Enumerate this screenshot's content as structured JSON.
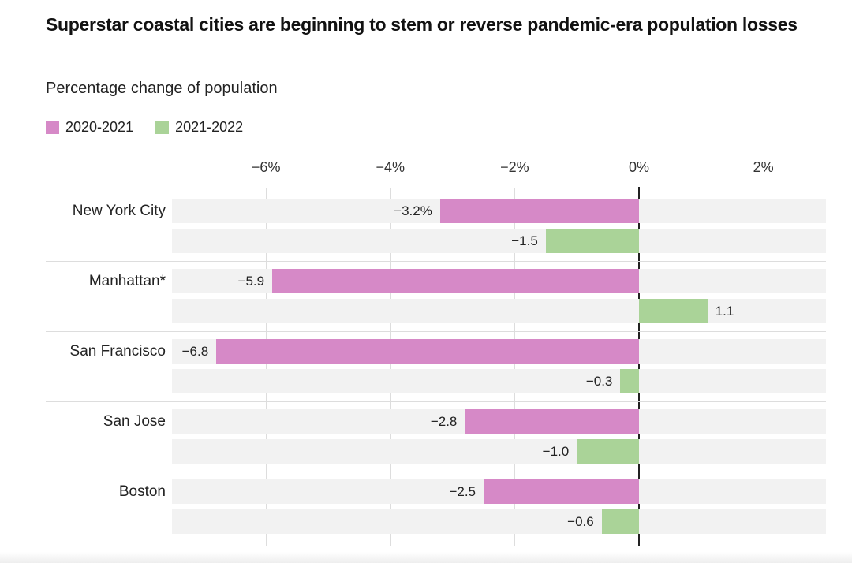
{
  "header": {
    "title": "Superstar coastal cities are beginning to stem or reverse pandemic-era population losses",
    "subtitle": "Percentage change of population"
  },
  "legend": [
    {
      "name": "2020-2021",
      "color": "#d689c7"
    },
    {
      "name": "2021-2022",
      "color": "#aad398"
    }
  ],
  "chart_data": {
    "type": "bar",
    "orientation": "horizontal",
    "title": "Superstar coastal cities are beginning to stem or reverse pandemic-era population losses",
    "subtitle": "Percentage change of population",
    "unit": "%",
    "categories": [
      "New York City",
      "Manhattan*",
      "San Francisco",
      "San Jose",
      "Boston"
    ],
    "series": [
      {
        "name": "2020-2021",
        "color": "#d689c7",
        "values": [
          -3.2,
          -5.9,
          -6.8,
          -2.8,
          -2.5
        ],
        "labels": [
          "−3.2%",
          "−5.9",
          "−6.8",
          "−2.8",
          "−2.5"
        ]
      },
      {
        "name": "2021-2022",
        "color": "#aad398",
        "values": [
          -1.5,
          1.1,
          -0.3,
          -1.0,
          -0.6
        ],
        "labels": [
          "−1.5",
          "1.1",
          "−0.3",
          "−1.0",
          "−0.6"
        ]
      }
    ],
    "axis": {
      "min": -7.51,
      "max": 3.01,
      "ticks": [
        {
          "value": -6,
          "label": "−6%"
        },
        {
          "value": -4,
          "label": "−4%"
        },
        {
          "value": -2,
          "label": "−2%"
        },
        {
          "value": 0,
          "label": "0%"
        },
        {
          "value": 2,
          "label": "2%"
        }
      ],
      "zero_line": true
    },
    "grid": true,
    "legend_position": "top",
    "colors": {
      "track": "#f2f2f2",
      "gridline": "#dddddd",
      "zero_line": "#222222",
      "separator": "#dddddd"
    }
  }
}
